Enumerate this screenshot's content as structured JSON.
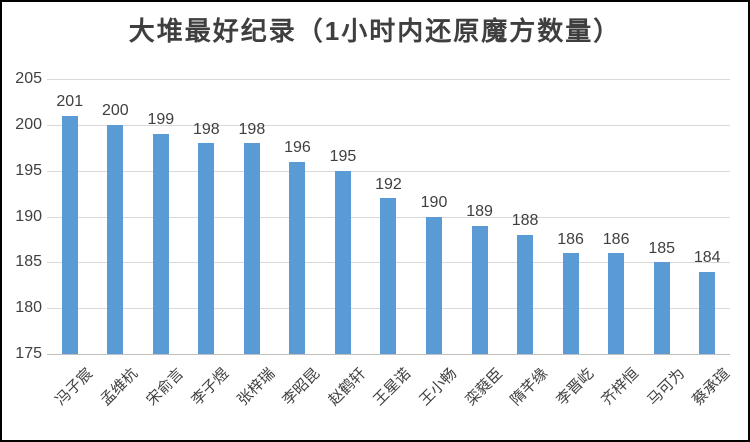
{
  "chart_data": {
    "type": "bar",
    "title": "大堆最好纪录（1小时内还原魔方数量）",
    "categories": [
      "冯子宸",
      "孟维杭",
      "宋俞言",
      "李子煜",
      "张梓瑞",
      "李昭昆",
      "赵鹤轩",
      "王星诺",
      "王小畅",
      "栾蕤臣",
      "隋芊缘",
      "李晋屹",
      "齐梓恒",
      "马可为",
      "蔡承瑄"
    ],
    "values": [
      201,
      200,
      199,
      198,
      198,
      196,
      195,
      192,
      190,
      189,
      188,
      186,
      186,
      185,
      184
    ],
    "xlabel": "",
    "ylabel": "",
    "ylim": [
      175,
      205
    ],
    "yticks": [
      205,
      200,
      195,
      190,
      185,
      180,
      175
    ],
    "grid": true,
    "legend": false,
    "data_labels": true,
    "colors": {
      "bar": "#5B9BD5",
      "gridline": "#D9D9D9",
      "axis_line": "#BFBFBF",
      "text": "#404040",
      "frame_border": "#000000",
      "background": "#FFFFFF"
    }
  }
}
